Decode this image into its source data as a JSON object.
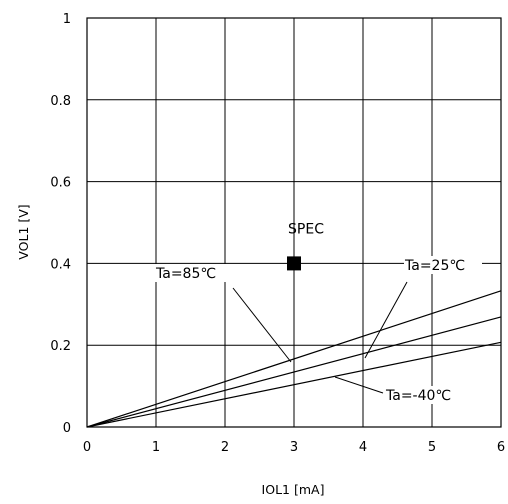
{
  "chart_data": {
    "type": "line",
    "title": "",
    "xlabel": "IOL1 [mA]",
    "ylabel": "VOL1 [V]",
    "xlim": [
      0,
      6
    ],
    "ylim": [
      0,
      1
    ],
    "grid": true,
    "x_ticks": [
      "0",
      "1",
      "2",
      "3",
      "4",
      "5",
      "6"
    ],
    "y_ticks": [
      "0",
      "0.2",
      "0.4",
      "0.6",
      "0.8",
      "1"
    ],
    "series": [
      {
        "name": "Ta=85℃",
        "x": [
          0,
          6
        ],
        "y": [
          0,
          0.333
        ]
      },
      {
        "name": "Ta=25℃",
        "x": [
          0,
          6
        ],
        "y": [
          0,
          0.269
        ]
      },
      {
        "name": "Ta=-40℃",
        "x": [
          0,
          6
        ],
        "y": [
          0,
          0.207
        ]
      }
    ],
    "spec_point": {
      "label": "SPEC",
      "x": 3,
      "y": 0.4
    },
    "annotations": {
      "ta85": "Ta=85℃",
      "ta25": "Ta=25℃",
      "ta40": "Ta=-40℃",
      "spec": "SPEC"
    }
  }
}
